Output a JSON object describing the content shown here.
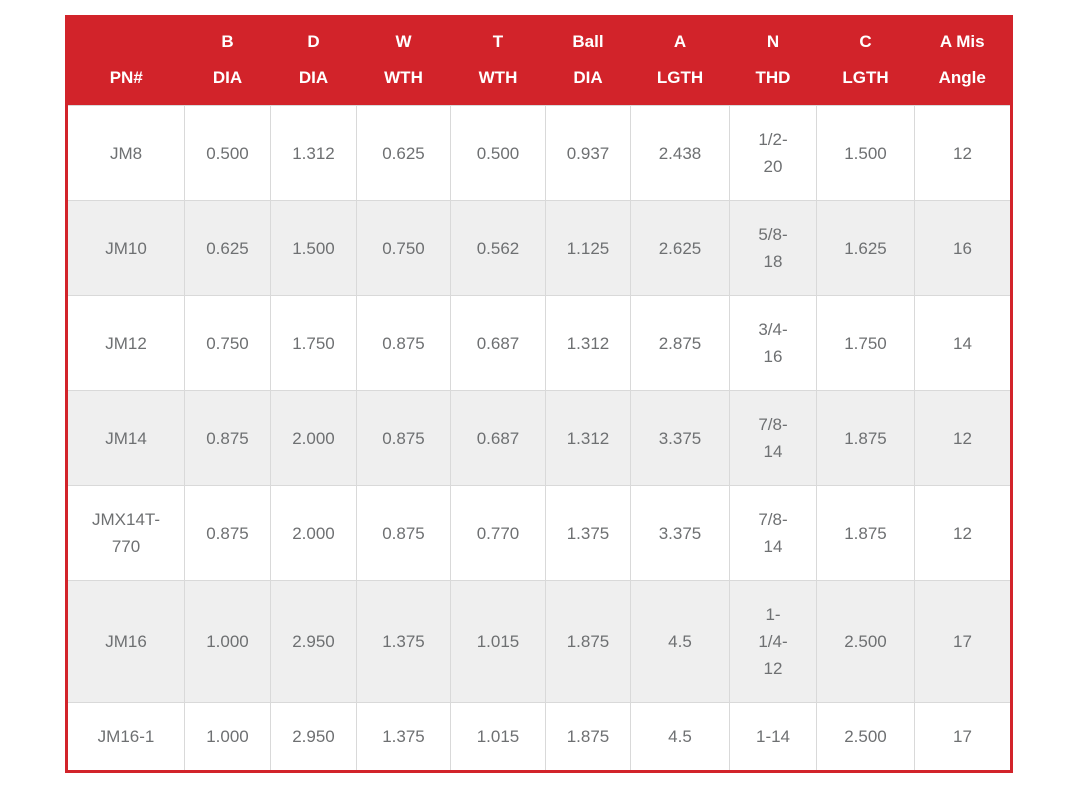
{
  "page": {
    "background": "#ffffff"
  },
  "spec_table": {
    "colors": {
      "accent_red": "#d2232a",
      "header_text": "#ffffff",
      "row_bg": "#ffffff",
      "row_alt_bg": "#efefef",
      "cell_border": "#d9d9d9",
      "cell_text": "#6e7072"
    },
    "columns": [
      {
        "label": "PN#"
      },
      {
        "label": "B\nDIA"
      },
      {
        "label": "D\nDIA"
      },
      {
        "label": "W\nWTH"
      },
      {
        "label": "T\nWTH"
      },
      {
        "label": "Ball\nDIA"
      },
      {
        "label": "A\nLGTH"
      },
      {
        "label": "N\nTHD"
      },
      {
        "label": "C\nLGTH"
      },
      {
        "label": "A Mis\nAngle"
      }
    ],
    "rows": [
      [
        "JM8",
        "0.500",
        "1.312",
        "0.625",
        "0.500",
        "0.937",
        "2.438",
        "1/2-\n20",
        "1.500",
        "12"
      ],
      [
        "JM10",
        "0.625",
        "1.500",
        "0.750",
        "0.562",
        "1.125",
        "2.625",
        "5/8-\n18",
        "1.625",
        "16"
      ],
      [
        "JM12",
        "0.750",
        "1.750",
        "0.875",
        "0.687",
        "1.312",
        "2.875",
        "3/4-\n16",
        "1.750",
        "14"
      ],
      [
        "JM14",
        "0.875",
        "2.000",
        "0.875",
        "0.687",
        "1.312",
        "3.375",
        "7/8-\n14",
        "1.875",
        "12"
      ],
      [
        "JMX14T-\n770",
        "0.875",
        "2.000",
        "0.875",
        "0.770",
        "1.375",
        "3.375",
        "7/8-\n14",
        "1.875",
        "12"
      ],
      [
        "JM16",
        "1.000",
        "2.950",
        "1.375",
        "1.015",
        "1.875",
        "4.5",
        "1-\n1/4-\n12",
        "2.500",
        "17"
      ],
      [
        "JM16-1",
        "1.000",
        "2.950",
        "1.375",
        "1.015",
        "1.875",
        "4.5",
        "1-14",
        "2.500",
        "17"
      ]
    ]
  }
}
